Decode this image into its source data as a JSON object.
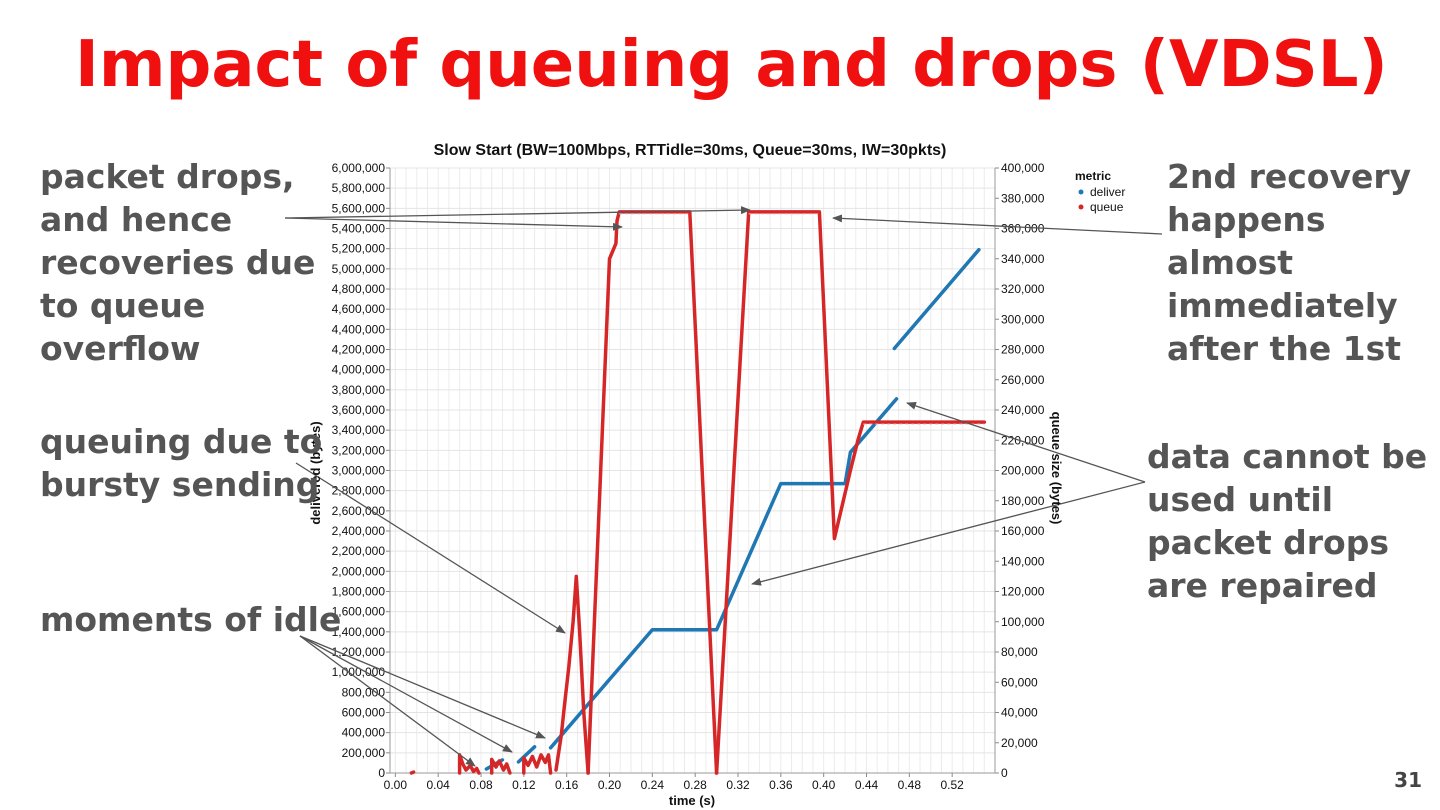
{
  "slide": {
    "title": "Impact of queuing and drops (VDSL)",
    "page_number": "31",
    "accent_color": "#f01010",
    "text_color": "#555555"
  },
  "annotations": [
    {
      "id": "packet-drops",
      "lines": [
        "packet drops,",
        "and hence",
        "recoveries due",
        "to queue",
        "overflow"
      ]
    },
    {
      "id": "queuing-bursty",
      "lines": [
        "queuing due to",
        "bursty sending"
      ]
    },
    {
      "id": "moments-idle",
      "lines": [
        "moments of idle"
      ]
    },
    {
      "id": "second-recovery",
      "lines": [
        "2nd recovery",
        "happens",
        "almost",
        "immediately",
        "after the 1st"
      ]
    },
    {
      "id": "data-cannot",
      "lines": [
        "data cannot be",
        "used until",
        "packet drops",
        "are repaired"
      ]
    }
  ],
  "chart_data": {
    "type": "line",
    "title": "Slow Start (BW=100Mbps, RTTidle=30ms, Queue=30ms, IW=30pkts)",
    "xlabel": "time (s)",
    "ylabel": "delivered (bytes)",
    "y2label": "queue size (bytes)",
    "xlim": [
      -0.005,
      0.56
    ],
    "ylim": [
      0,
      6000000
    ],
    "y2lim": [
      0,
      400000
    ],
    "x_ticks": [
      "0.00",
      "0.04",
      "0.08",
      "0.12",
      "0.16",
      "0.20",
      "0.24",
      "0.28",
      "0.32",
      "0.36",
      "0.40",
      "0.44",
      "0.48",
      "0.52"
    ],
    "y_ticks": [
      "0",
      "200,000",
      "400,000",
      "600,000",
      "800,000",
      "1,000,000",
      "1,200,000",
      "1,400,000",
      "1,600,000",
      "1,800,000",
      "2,000,000",
      "2,200,000",
      "2,400,000",
      "2,600,000",
      "2,800,000",
      "3,000,000",
      "3,200,000",
      "3,400,000",
      "3,600,000",
      "3,800,000",
      "4,000,000",
      "4,200,000",
      "4,400,000",
      "4,600,000",
      "4,800,000",
      "5,000,000",
      "5,200,000",
      "5,400,000",
      "5,600,000",
      "5,800,000",
      "6,000,000"
    ],
    "y2_ticks": [
      "0",
      "20,000",
      "40,000",
      "60,000",
      "80,000",
      "100,000",
      "120,000",
      "140,000",
      "160,000",
      "180,000",
      "200,000",
      "220,000",
      "240,000",
      "260,000",
      "280,000",
      "300,000",
      "320,000",
      "340,000",
      "360,000",
      "380,000",
      "400,000"
    ],
    "grid": true,
    "legend": {
      "title": "metric",
      "placement": "top-right"
    },
    "series": [
      {
        "name": "deliver",
        "color": "#1f77b4",
        "axis": "left",
        "segments": [
          [
            [
              0.085,
              40000
            ],
            [
              0.1,
              130000
            ]
          ],
          [
            [
              0.115,
              110000
            ],
            [
              0.13,
              260000
            ]
          ],
          [
            [
              0.145,
              250000
            ],
            [
              0.24,
              1420000
            ],
            [
              0.3,
              1420000
            ],
            [
              0.36,
              2870000
            ],
            [
              0.42,
              2870000
            ],
            [
              0.425,
              3180000
            ],
            [
              0.468,
              3710000
            ]
          ],
          [
            [
              0.466,
              4210000
            ],
            [
              0.545,
              5190000
            ]
          ]
        ]
      },
      {
        "name": "queue",
        "color": "#d62728",
        "axis": "right",
        "segments": [
          [
            [
              0.015,
              0
            ],
            [
              0.017,
              600
            ]
          ],
          [
            [
              0.06,
              0
            ],
            [
              0.06,
              12000
            ],
            [
              0.063,
              6000
            ],
            [
              0.066,
              2000
            ],
            [
              0.07,
              5000
            ],
            [
              0.073,
              1000
            ],
            [
              0.076,
              3000
            ],
            [
              0.078,
              0
            ]
          ],
          [
            [
              0.09,
              0
            ],
            [
              0.09,
              9000
            ],
            [
              0.094,
              4000
            ],
            [
              0.097,
              8000
            ],
            [
              0.101,
              2000
            ],
            [
              0.104,
              6000
            ],
            [
              0.107,
              0
            ]
          ],
          [
            [
              0.12,
              0
            ],
            [
              0.12,
              10000
            ],
            [
              0.124,
              5000
            ],
            [
              0.128,
              11000
            ],
            [
              0.132,
              4000
            ],
            [
              0.136,
              12000
            ],
            [
              0.14,
              7000
            ],
            [
              0.143,
              12000
            ],
            [
              0.145,
              0
            ]
          ],
          [
            [
              0.15,
              2000
            ],
            [
              0.155,
              25000
            ],
            [
              0.158,
              45000
            ],
            [
              0.162,
              70000
            ],
            [
              0.166,
              100000
            ],
            [
              0.169,
              130000
            ],
            [
              0.172,
              95000
            ],
            [
              0.176,
              40000
            ],
            [
              0.18,
              0
            ]
          ],
          [
            [
              0.18,
              0
            ],
            [
              0.2,
              340000
            ],
            [
              0.206,
              350000
            ],
            [
              0.207,
              365000
            ],
            [
              0.209,
              371000
            ],
            [
              0.275,
              371000
            ],
            [
              0.3,
              0
            ]
          ],
          [
            [
              0.3,
              0
            ],
            [
              0.33,
              371000
            ],
            [
              0.396,
              371000
            ],
            [
              0.41,
              155000
            ],
            [
              0.425,
              200000
            ],
            [
              0.432,
              220000
            ],
            [
              0.437,
              232000
            ],
            [
              0.55,
              232000
            ]
          ]
        ]
      }
    ]
  }
}
